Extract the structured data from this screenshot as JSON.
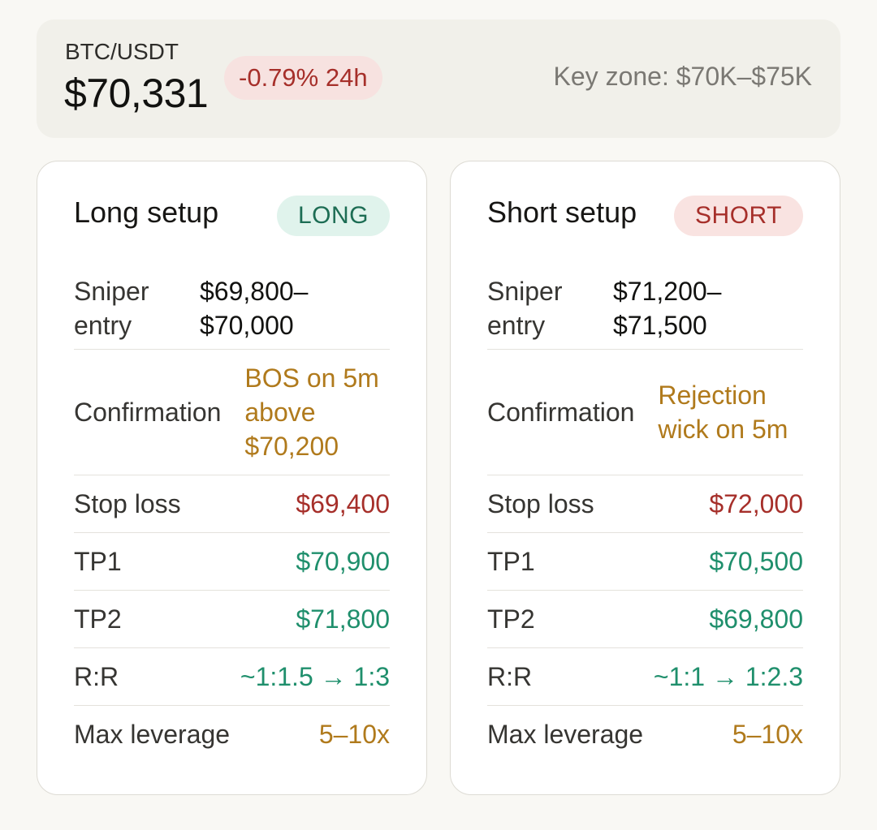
{
  "header": {
    "pair": "BTC/USDT",
    "price": "$70,331",
    "change": "-0.79% 24h",
    "key_zone": "Key zone: $70K–$75K"
  },
  "long": {
    "title": "Long setup",
    "tag": "LONG",
    "entry_label": "Sniper entry",
    "entry_value": "$69,800–$70,000",
    "confirmation_label": "Confirmation",
    "confirmation_value": "BOS on 5m above $70,200",
    "stop_loss_label": "Stop loss",
    "stop_loss_value": "$69,400",
    "tp1_label": "TP1",
    "tp1_value": "$70,900",
    "tp2_label": "TP2",
    "tp2_value": "$71,800",
    "rr_label": "R:R",
    "rr_value": "~1:1.5 → 1:3",
    "leverage_label": "Max leverage",
    "leverage_value": "5–10x"
  },
  "short": {
    "title": "Short setup",
    "tag": "SHORT",
    "entry_label": "Sniper entry",
    "entry_value": "$71,200–$71,500",
    "confirmation_label": "Confirmation",
    "confirmation_value": "Rejection wick on 5m",
    "stop_loss_label": "Stop loss",
    "stop_loss_value": "$72,000",
    "tp1_label": "TP1",
    "tp1_value": "$70,500",
    "tp2_label": "TP2",
    "tp2_value": "$69,800",
    "rr_label": "R:R",
    "rr_value": "~1:1 → 1:2.3",
    "leverage_label": "Max leverage",
    "leverage_value": "5–10x"
  },
  "colors": {
    "red": "#a62f2a",
    "green": "#1f8f6c",
    "amber": "#b07a1c"
  }
}
